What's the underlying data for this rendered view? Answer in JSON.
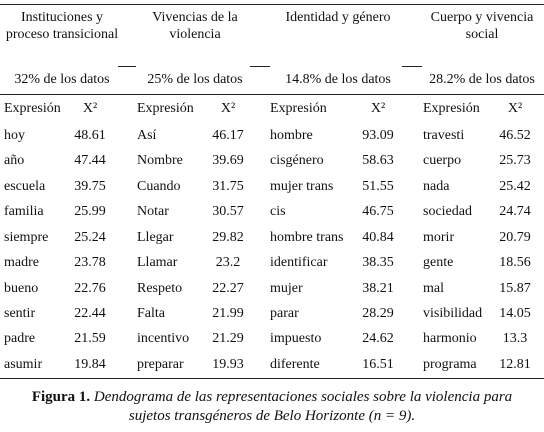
{
  "table": {
    "groups": [
      {
        "title": "Instituciones y proceso transicional",
        "share": "32% de los datos",
        "header": [
          "Expresión",
          "X²"
        ],
        "rows": [
          [
            "hoy",
            48.61
          ],
          [
            "año",
            47.44
          ],
          [
            "escuela",
            39.75
          ],
          [
            "familia",
            25.99
          ],
          [
            "siempre",
            25.24
          ],
          [
            "madre",
            23.78
          ],
          [
            "bueno",
            22.76
          ],
          [
            "sentir",
            22.44
          ],
          [
            "padre",
            21.59
          ],
          [
            "asumir",
            19.84
          ]
        ]
      },
      {
        "title": "Vivencias de la violencia",
        "share": "25% de los datos",
        "header": [
          "Expresión",
          "X²"
        ],
        "rows": [
          [
            "Así",
            46.17
          ],
          [
            "Nombre",
            39.69
          ],
          [
            "Cuando",
            31.75
          ],
          [
            "Notar",
            30.57
          ],
          [
            "Llegar",
            29.82
          ],
          [
            "Llamar",
            23.2
          ],
          [
            "Respeto",
            22.27
          ],
          [
            "Falta",
            21.99
          ],
          [
            "incentivo",
            21.29
          ],
          [
            "preparar",
            19.93
          ]
        ]
      },
      {
        "title": "Identidad y género",
        "share": "14.8% de los datos",
        "header": [
          "Expresión",
          "X²"
        ],
        "rows": [
          [
            "hombre",
            93.09
          ],
          [
            "cisgénero",
            58.63
          ],
          [
            "mujer trans",
            51.55
          ],
          [
            "cis",
            46.75
          ],
          [
            "hombre trans",
            40.84
          ],
          [
            "identificar",
            38.35
          ],
          [
            "mujer",
            38.21
          ],
          [
            "parar",
            28.29
          ],
          [
            "impuesto",
            24.62
          ],
          [
            "diferente",
            16.51
          ]
        ]
      },
      {
        "title": "Cuerpo y vivencia social",
        "share": "28.2% de los datos",
        "header": [
          "Expresión",
          "X²"
        ],
        "rows": [
          [
            "travesti",
            46.52
          ],
          [
            "cuerpo",
            25.73
          ],
          [
            "nada",
            25.42
          ],
          [
            "sociedad",
            24.74
          ],
          [
            "morir",
            20.79
          ],
          [
            "gente",
            18.56
          ],
          [
            "mal",
            15.87
          ],
          [
            "visibilidad",
            14.05
          ],
          [
            "harmonio",
            13.3
          ],
          [
            "programa",
            12.81
          ]
        ]
      }
    ]
  },
  "caption": {
    "label": "Figura 1.",
    "text": "Dendograma de las representaciones sociales sobre la violencia para sujetos transgéneros de Belo Horizonte (n = 9)."
  }
}
